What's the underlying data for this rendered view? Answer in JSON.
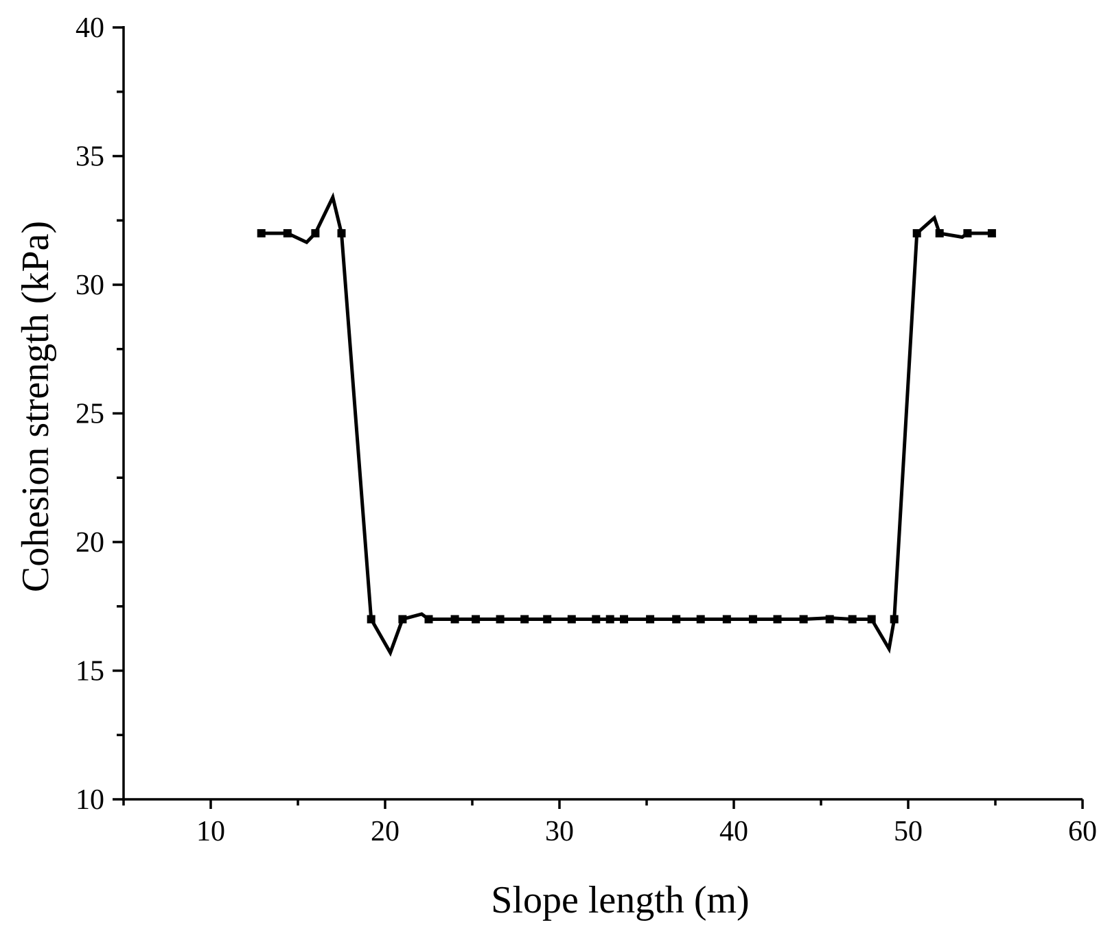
{
  "chart_data": {
    "type": "line",
    "title": "",
    "xlabel": "Slope length (m)",
    "ylabel": "Cohesion strength (kPa)",
    "xlim": [
      5,
      60
    ],
    "ylim": [
      10,
      40
    ],
    "xticks": [
      10,
      20,
      30,
      40,
      50,
      60
    ],
    "yticks": [
      10,
      15,
      20,
      25,
      30,
      35,
      40
    ],
    "xtick_labels": [
      "10",
      "20",
      "30",
      "40",
      "50",
      "60"
    ],
    "ytick_labels": [
      "10",
      "15",
      "20",
      "25",
      "30",
      "35",
      "40"
    ],
    "grid": false,
    "legend": "none",
    "series": [
      {
        "line": {
          "x": [
            12.9,
            14.4,
            15.5,
            16.0,
            17.0,
            17.5,
            19.2,
            20.3,
            21.0,
            22.1,
            22.5,
            24.0,
            25.2,
            26.6,
            28.0,
            29.3,
            30.7,
            32.1,
            32.9,
            33.7,
            35.2,
            36.7,
            38.1,
            39.6,
            41.1,
            42.5,
            44.0,
            45.5,
            46.8,
            47.9,
            48.9,
            49.2,
            50.5,
            51.5,
            51.8,
            53.1,
            53.4,
            54.8
          ],
          "y": [
            32.0,
            32.0,
            31.65,
            32.0,
            33.4,
            32.0,
            17.0,
            15.7,
            17.0,
            17.2,
            17.0,
            17.0,
            17.0,
            17.0,
            17.0,
            17.0,
            17.0,
            17.0,
            17.0,
            17.0,
            17.0,
            17.0,
            17.0,
            17.0,
            17.0,
            17.0,
            17.0,
            17.05,
            17.0,
            17.0,
            15.85,
            17.0,
            32.0,
            32.6,
            32.0,
            31.85,
            32.0,
            32.0
          ]
        },
        "markers": {
          "x": [
            12.9,
            14.4,
            16.0,
            17.5,
            19.2,
            21.0,
            22.5,
            24.0,
            25.2,
            26.6,
            28.0,
            29.3,
            30.7,
            32.1,
            32.9,
            33.7,
            35.2,
            36.7,
            38.1,
            39.6,
            41.1,
            42.5,
            44.0,
            45.5,
            46.8,
            47.9,
            49.2,
            50.5,
            51.8,
            53.4,
            54.8
          ],
          "y": [
            32.0,
            32.0,
            32.0,
            32.0,
            17.0,
            17.0,
            17.0,
            17.0,
            17.0,
            17.0,
            17.0,
            17.0,
            17.0,
            17.0,
            17.0,
            17.0,
            17.0,
            17.0,
            17.0,
            17.0,
            17.0,
            17.0,
            17.0,
            17.0,
            17.0,
            17.0,
            17.0,
            32.0,
            32.0,
            32.0,
            32.0
          ]
        },
        "marker": "square",
        "color": "#000000"
      }
    ]
  }
}
